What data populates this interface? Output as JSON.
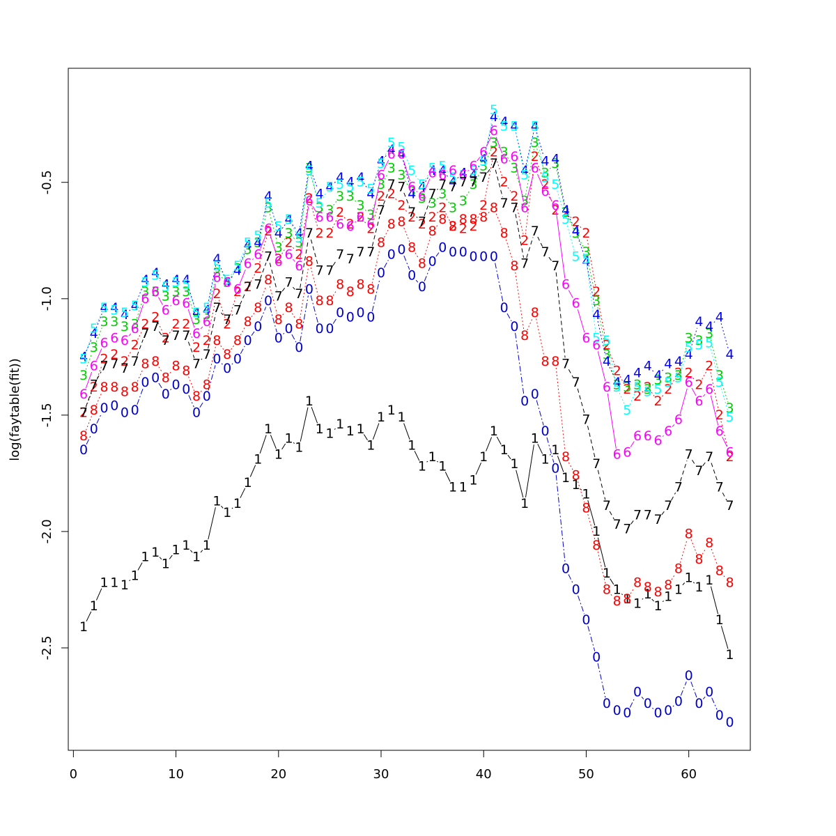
{
  "chart_data": {
    "type": "line",
    "title": "",
    "xlabel": "",
    "ylabel": "log(faytable(fit))",
    "xlim": [
      -0.5,
      66
    ],
    "ylim": [
      -2.94,
      -0.01
    ],
    "xticks": [
      0,
      10,
      20,
      30,
      40,
      50,
      60
    ],
    "yticks": [
      -2.5,
      -2.0,
      -1.5,
      -1.0,
      -0.5
    ],
    "ytick_labels": [
      "-2.5",
      "-2.0",
      "-1.5",
      "-1.0",
      "-0.5"
    ],
    "x": [
      1,
      2,
      3,
      4,
      5,
      6,
      7,
      8,
      9,
      10,
      11,
      12,
      13,
      14,
      15,
      16,
      17,
      18,
      19,
      20,
      21,
      22,
      23,
      24,
      25,
      26,
      27,
      28,
      29,
      30,
      31,
      32,
      33,
      34,
      35,
      36,
      37,
      38,
      39,
      40,
      41,
      42,
      43,
      44,
      45,
      46,
      47,
      48,
      49,
      50,
      51,
      52,
      53,
      54,
      55,
      56,
      57,
      58,
      59,
      60,
      61,
      62,
      63,
      64
    ],
    "series": [
      {
        "label": "0",
        "color": "#0000cd",
        "dash": "8,3,2,3",
        "values": [
          -1.65,
          -1.56,
          -1.47,
          -1.46,
          -1.49,
          -1.48,
          -1.36,
          -1.34,
          -1.41,
          -1.37,
          -1.39,
          -1.49,
          -1.42,
          -1.26,
          -1.3,
          -1.26,
          -1.18,
          -1.12,
          -1.01,
          -1.17,
          -1.13,
          -1.21,
          -0.96,
          -1.13,
          -1.13,
          -1.06,
          -1.08,
          -1.06,
          -1.08,
          -0.89,
          -0.81,
          -0.79,
          -0.9,
          -0.95,
          -0.84,
          -0.78,
          -0.8,
          -0.8,
          -0.82,
          -0.82,
          -0.82,
          -1.04,
          -1.12,
          -1.44,
          -1.41,
          -1.57,
          -1.73,
          -2.16,
          -2.25,
          -2.38,
          -2.54,
          -2.74,
          -2.77,
          -2.78,
          -2.69,
          -2.74,
          -2.78,
          -2.77,
          -2.73,
          -2.62,
          -2.74,
          -2.69,
          -2.79,
          -2.82
        ]
      },
      {
        "label": "1",
        "color": "#000000",
        "dash": "",
        "values": [
          -2.41,
          -2.32,
          -2.22,
          -2.22,
          -2.23,
          -2.19,
          -2.11,
          -2.09,
          -2.14,
          -2.08,
          -2.06,
          -2.11,
          -2.06,
          -1.87,
          -1.92,
          -1.88,
          -1.79,
          -1.69,
          -1.56,
          -1.67,
          -1.6,
          -1.64,
          -1.44,
          -1.56,
          -1.58,
          -1.54,
          -1.57,
          -1.56,
          -1.63,
          -1.51,
          -1.48,
          -1.51,
          -1.63,
          -1.72,
          -1.68,
          -1.72,
          -1.81,
          -1.81,
          -1.78,
          -1.68,
          -1.57,
          -1.65,
          -1.71,
          -1.88,
          -1.6,
          -1.69,
          -1.65,
          -1.77,
          -1.8,
          -1.84,
          -2.0,
          -2.18,
          -2.25,
          -2.29,
          -2.31,
          -2.27,
          -2.32,
          -2.28,
          -2.25,
          -2.2,
          -2.24,
          -2.21,
          -2.38,
          -2.53
        ]
      },
      {
        "label": "2",
        "color": "#ff0000",
        "dash": "2,3",
        "values": [
          -1.49,
          -1.38,
          -1.26,
          -1.24,
          -1.27,
          -1.2,
          -1.11,
          -1.08,
          -1.17,
          -1.11,
          -1.11,
          -1.21,
          -1.18,
          -0.98,
          -1.11,
          -0.97,
          -0.95,
          -0.87,
          -0.71,
          -0.83,
          -0.76,
          -0.81,
          -0.57,
          -0.72,
          -0.72,
          -0.63,
          -0.68,
          -0.65,
          -0.7,
          -0.56,
          -0.55,
          -0.6,
          -0.65,
          -0.68,
          -0.65,
          -0.61,
          -0.69,
          -0.7,
          -0.69,
          -0.6,
          -0.37,
          -0.5,
          -0.56,
          -0.75,
          -0.39,
          -0.51,
          -0.62,
          -0.63,
          -0.67,
          -0.72,
          -0.97,
          -1.2,
          -1.31,
          -1.39,
          -1.42,
          -1.38,
          -1.44,
          -1.39,
          -1.32,
          -1.32,
          -1.37,
          -1.29,
          -1.5,
          -1.68
        ]
      },
      {
        "label": "3",
        "color": "#00cd00",
        "dash": "2,3",
        "values": [
          -1.33,
          -1.21,
          -1.1,
          -1.1,
          -1.12,
          -1.11,
          -0.97,
          -0.97,
          -0.99,
          -0.97,
          -0.97,
          -1.09,
          -1.07,
          -0.89,
          -0.93,
          -0.87,
          -0.79,
          -0.76,
          -0.61,
          -0.78,
          -0.72,
          -0.76,
          -0.44,
          -0.61,
          -0.62,
          -0.56,
          -0.56,
          -0.6,
          -0.64,
          -0.51,
          -0.44,
          -0.47,
          -0.54,
          -0.57,
          -0.59,
          -0.55,
          -0.61,
          -0.58,
          -0.51,
          -0.43,
          -0.33,
          -0.37,
          -0.44,
          -0.58,
          -0.33,
          -0.46,
          -0.42,
          -0.63,
          -0.72,
          -0.8,
          -1.01,
          -1.24,
          -1.37,
          -1.38,
          -1.37,
          -1.39,
          -1.35,
          -1.34,
          -1.33,
          -1.17,
          -1.18,
          -1.15,
          -1.33,
          -1.47
        ]
      },
      {
        "label": "4",
        "color": "#0000ff",
        "dash": "2,3",
        "values": [
          -1.25,
          -1.15,
          -1.04,
          -1.04,
          -1.07,
          -1.03,
          -0.92,
          -0.89,
          -0.94,
          -0.92,
          -0.92,
          -1.06,
          -1.05,
          -0.83,
          -0.93,
          -0.88,
          -0.77,
          -0.76,
          -0.56,
          -0.72,
          -0.66,
          -0.72,
          -0.43,
          -0.55,
          -0.52,
          -0.48,
          -0.5,
          -0.48,
          -0.55,
          -0.41,
          -0.36,
          -0.38,
          -0.55,
          -0.52,
          -0.45,
          -0.45,
          -0.5,
          -0.46,
          -0.47,
          -0.4,
          -0.22,
          -0.24,
          -0.26,
          -0.45,
          -0.26,
          -0.41,
          -0.4,
          -0.62,
          -0.71,
          -0.84,
          -1.07,
          -1.27,
          -1.36,
          -1.35,
          -1.32,
          -1.29,
          -1.33,
          -1.28,
          -1.27,
          -1.24,
          -1.1,
          -1.12,
          -1.08,
          -1.24
        ]
      },
      {
        "label": "5",
        "color": "#00ffff",
        "dash": "2,3",
        "values": [
          -1.26,
          -1.13,
          -1.04,
          -1.05,
          -1.06,
          -1.03,
          -0.93,
          -0.9,
          -0.95,
          -0.93,
          -0.94,
          -1.06,
          -1.04,
          -0.86,
          -0.92,
          -0.86,
          -0.76,
          -0.73,
          -0.59,
          -0.69,
          -0.66,
          -0.74,
          -0.45,
          -0.59,
          -0.52,
          -0.51,
          -0.52,
          -0.5,
          -0.53,
          -0.42,
          -0.33,
          -0.35,
          -0.45,
          -0.51,
          -0.44,
          -0.43,
          -0.48,
          -0.47,
          -0.45,
          -0.41,
          -0.19,
          -0.26,
          -0.26,
          -0.47,
          -0.26,
          -0.48,
          -0.51,
          -0.66,
          -0.82,
          -0.83,
          -1.17,
          -1.18,
          -1.38,
          -1.48,
          -1.38,
          -1.4,
          -1.39,
          -1.36,
          -1.34,
          -1.21,
          -1.2,
          -1.19,
          -1.36,
          -1.51
        ]
      },
      {
        "label": "6",
        "color": "#ff00ff",
        "dash": "",
        "values": [
          -1.41,
          -1.29,
          -1.19,
          -1.17,
          -1.18,
          -1.13,
          -1.0,
          -0.97,
          -1.05,
          -1.01,
          -1.02,
          -1.15,
          -1.1,
          -0.91,
          -0.93,
          -0.96,
          -0.85,
          -0.81,
          -0.7,
          -0.84,
          -0.81,
          -0.86,
          -0.58,
          -0.65,
          -0.65,
          -0.68,
          -0.69,
          -0.65,
          -0.68,
          -0.47,
          -0.38,
          -0.38,
          -0.52,
          -0.56,
          -0.46,
          -0.47,
          -0.45,
          -0.47,
          -0.43,
          -0.37,
          -0.28,
          -0.4,
          -0.39,
          -0.61,
          -0.44,
          -0.54,
          -0.6,
          -0.94,
          -1.02,
          -1.17,
          -1.2,
          -1.38,
          -1.67,
          -1.66,
          -1.59,
          -1.59,
          -1.61,
          -1.57,
          -1.52,
          -1.36,
          -1.44,
          -1.39,
          -1.57,
          -1.66
        ]
      },
      {
        "label": "7",
        "color": "#000000",
        "dash": "6,4",
        "values": [
          -1.49,
          -1.37,
          -1.29,
          -1.28,
          -1.3,
          -1.27,
          -1.15,
          -1.12,
          -1.18,
          -1.16,
          -1.16,
          -1.28,
          -1.24,
          -1.04,
          -1.09,
          -1.05,
          -0.95,
          -0.94,
          -0.82,
          -0.99,
          -0.93,
          -0.98,
          -0.72,
          -0.88,
          -0.88,
          -0.81,
          -0.83,
          -0.8,
          -0.8,
          -0.62,
          -0.51,
          -0.52,
          -0.63,
          -0.67,
          -0.55,
          -0.51,
          -0.52,
          -0.5,
          -0.5,
          -0.48,
          -0.42,
          -0.59,
          -0.61,
          -0.85,
          -0.71,
          -0.8,
          -0.86,
          -1.28,
          -1.36,
          -1.52,
          -1.71,
          -1.89,
          -1.97,
          -1.99,
          -1.93,
          -1.93,
          -1.95,
          -1.89,
          -1.81,
          -1.67,
          -1.74,
          -1.68,
          -1.81,
          -1.89
        ]
      },
      {
        "label": "8",
        "color": "#ff0000",
        "dash": "2,3",
        "values": [
          -1.59,
          -1.48,
          -1.38,
          -1.38,
          -1.4,
          -1.38,
          -1.28,
          -1.27,
          -1.34,
          -1.29,
          -1.31,
          -1.42,
          -1.37,
          -1.18,
          -1.24,
          -1.18,
          -1.1,
          -1.04,
          -0.92,
          -1.09,
          -1.04,
          -1.11,
          -0.84,
          -1.01,
          -1.01,
          -0.94,
          -0.97,
          -0.94,
          -0.96,
          -0.76,
          -0.68,
          -0.67,
          -0.78,
          -0.85,
          -0.71,
          -0.66,
          -0.69,
          -0.66,
          -0.66,
          -0.65,
          -0.61,
          -0.72,
          -0.86,
          -1.16,
          -1.06,
          -1.27,
          -1.27,
          -1.68,
          -1.76,
          -1.9,
          -2.06,
          -2.25,
          -2.3,
          -2.29,
          -2.22,
          -2.24,
          -2.26,
          -2.23,
          -2.16,
          -2.01,
          -2.12,
          -2.05,
          -2.17,
          -2.22
        ]
      }
    ]
  }
}
